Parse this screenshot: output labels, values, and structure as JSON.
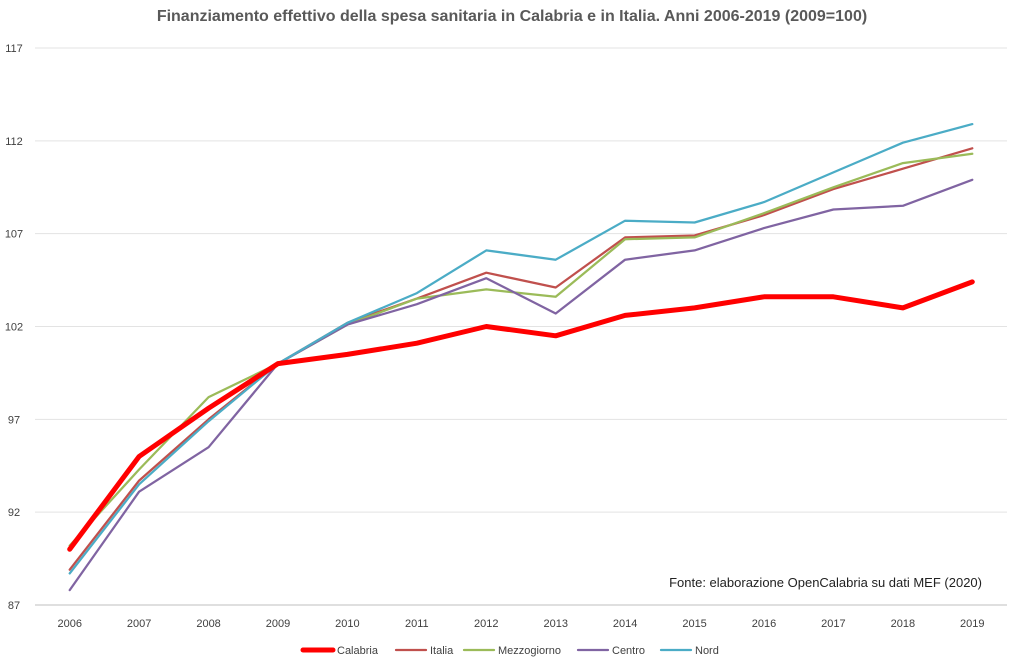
{
  "chart_data": {
    "type": "line",
    "title": "Finanziamento effettivo della spesa sanitaria in Calabria e in Italia.  Anni 2006-2019 (2009=100)",
    "source": "Fonte: elaborazione OpenCalabria su dati MEF (2020)",
    "xlabel": "",
    "ylabel": "",
    "x": [
      "2006",
      "2007",
      "2008",
      "2009",
      "2010",
      "2011",
      "2012",
      "2013",
      "2014",
      "2015",
      "2016",
      "2017",
      "2018",
      "2019"
    ],
    "ylim": [
      87,
      117
    ],
    "yticks": [
      87,
      92,
      97,
      102,
      107,
      112,
      117
    ],
    "grid": "horizontal",
    "legend_position": "bottom",
    "series": [
      {
        "name": "Calabria",
        "color": "#ff0000",
        "emphasis": true,
        "values": [
          90.0,
          95.0,
          97.6,
          100.0,
          100.5,
          101.1,
          102.0,
          101.5,
          102.6,
          103.0,
          103.6,
          103.6,
          103.0,
          104.4
        ]
      },
      {
        "name": "Italia",
        "color": "#c0504d",
        "values": [
          88.9,
          93.7,
          97.0,
          100.0,
          102.2,
          103.5,
          104.9,
          104.1,
          106.8,
          106.9,
          108.0,
          109.4,
          110.5,
          111.6
        ]
      },
      {
        "name": "Mezzogiorno",
        "color": "#9bbb59",
        "values": [
          90.2,
          94.3,
          98.2,
          100.0,
          102.1,
          103.5,
          104.0,
          103.6,
          106.7,
          106.8,
          108.1,
          109.5,
          110.8,
          111.3
        ]
      },
      {
        "name": "Centro",
        "color": "#8064a2",
        "values": [
          87.8,
          93.1,
          95.5,
          100.0,
          102.1,
          103.2,
          104.6,
          102.7,
          105.6,
          106.1,
          107.3,
          108.3,
          108.5,
          109.9
        ]
      },
      {
        "name": "Nord",
        "color": "#4bacc6",
        "values": [
          88.7,
          93.5,
          96.9,
          100.0,
          102.2,
          103.8,
          106.1,
          105.6,
          107.7,
          107.6,
          108.7,
          110.3,
          111.9,
          112.9
        ]
      }
    ]
  }
}
